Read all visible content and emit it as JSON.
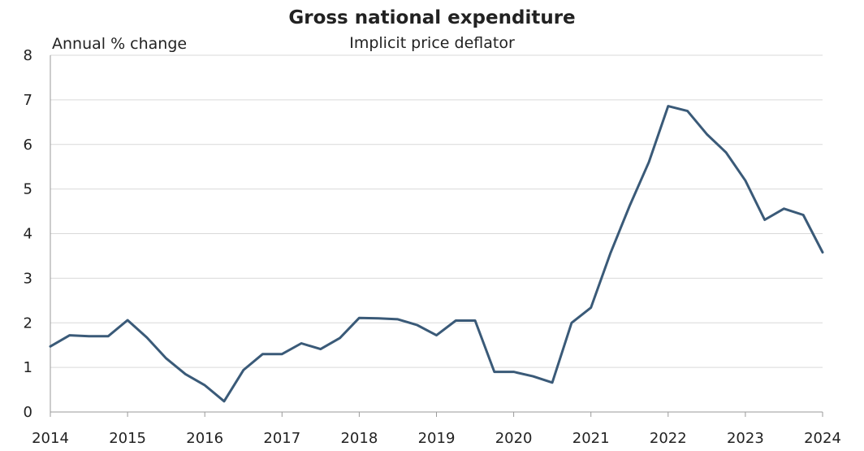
{
  "chart_data": {
    "type": "line",
    "title": "Gross national expenditure",
    "subtitle": "Implicit price deflator",
    "ylabel": "Annual % change",
    "xlabel": "",
    "ylim": [
      0,
      8
    ],
    "yticks": [
      0,
      1,
      2,
      3,
      4,
      5,
      6,
      7,
      8
    ],
    "xlim": [
      2014,
      2024
    ],
    "xticks": [
      "2014",
      "2015",
      "2016",
      "2017",
      "2018",
      "2019",
      "2020",
      "2021",
      "2022",
      "2023",
      "2024"
    ],
    "grid": true,
    "series": [
      {
        "name": "Implicit price deflator",
        "color": "#3a5a78",
        "x": [
          2014.0,
          2014.25,
          2014.5,
          2014.75,
          2015.0,
          2015.25,
          2015.5,
          2015.75,
          2016.0,
          2016.25,
          2016.5,
          2016.75,
          2017.0,
          2017.25,
          2017.5,
          2017.75,
          2018.0,
          2018.25,
          2018.5,
          2018.75,
          2019.0,
          2019.25,
          2019.5,
          2019.75,
          2020.0,
          2020.25,
          2020.5,
          2020.75,
          2021.0,
          2021.25,
          2021.5,
          2021.75,
          2022.0,
          2022.25,
          2022.5,
          2022.75,
          2023.0,
          2023.25,
          2023.5,
          2023.75,
          2024.0
        ],
        "values": [
          1.47,
          1.72,
          1.7,
          1.7,
          2.06,
          1.67,
          1.2,
          0.85,
          0.6,
          0.24,
          0.94,
          1.3,
          1.3,
          1.54,
          1.41,
          1.66,
          2.11,
          2.1,
          2.08,
          1.95,
          1.72,
          2.05,
          2.05,
          0.9,
          0.9,
          0.8,
          0.66,
          2.0,
          2.34,
          3.55,
          4.62,
          5.6,
          6.86,
          6.75,
          6.23,
          5.82,
          5.19,
          4.31,
          4.56,
          4.42,
          3.58
        ]
      }
    ]
  }
}
